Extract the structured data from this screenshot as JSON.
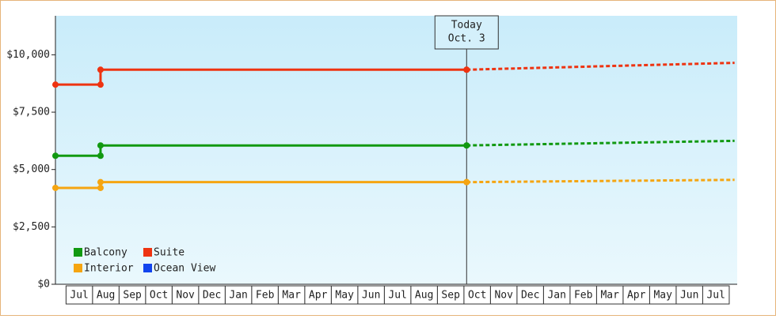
{
  "chart_data": {
    "type": "step",
    "categories": [
      "Jul",
      "Aug",
      "Sep",
      "Oct",
      "Nov",
      "Dec",
      "Jan",
      "Feb",
      "Mar",
      "Apr",
      "May",
      "Jun",
      "Jul",
      "Aug",
      "Sep",
      "Oct",
      "Nov",
      "Dec",
      "Jan",
      "Feb",
      "Mar",
      "Apr",
      "May",
      "Jun",
      "Jul"
    ],
    "x": [
      -0.4,
      1.3,
      15.1,
      25.2
    ],
    "xlim": [
      -0.4,
      25.3
    ],
    "ylim": [
      0,
      11700
    ],
    "yticks": [
      {
        "value": 0,
        "label": "$0"
      },
      {
        "value": 2500,
        "label": "$2,500"
      },
      {
        "value": 5000,
        "label": "$5,000"
      },
      {
        "value": 7500,
        "label": "$7,500"
      },
      {
        "value": 10000,
        "label": "$10,000"
      }
    ],
    "series": [
      {
        "name": "Balcony",
        "color": "#119911",
        "values": [
          5600,
          6050,
          6050,
          null
        ],
        "forecast": [
          null,
          null,
          6050,
          6250
        ]
      },
      {
        "name": "Suite",
        "color": "#ee3311",
        "values": [
          8700,
          9350,
          9350,
          null
        ],
        "forecast": [
          null,
          null,
          9350,
          9650
        ]
      },
      {
        "name": "Interior",
        "color": "#f5a511",
        "values": [
          4200,
          4450,
          4450,
          null
        ],
        "forecast": [
          null,
          null,
          4450,
          4550
        ]
      },
      {
        "name": "Ocean View",
        "color": "#1144ee",
        "values": [
          null,
          null,
          null,
          null
        ],
        "forecast": [
          null,
          null,
          null,
          null
        ]
      }
    ],
    "annotation": {
      "x": 15.1,
      "lines": [
        "Today",
        "Oct. 3"
      ]
    }
  }
}
